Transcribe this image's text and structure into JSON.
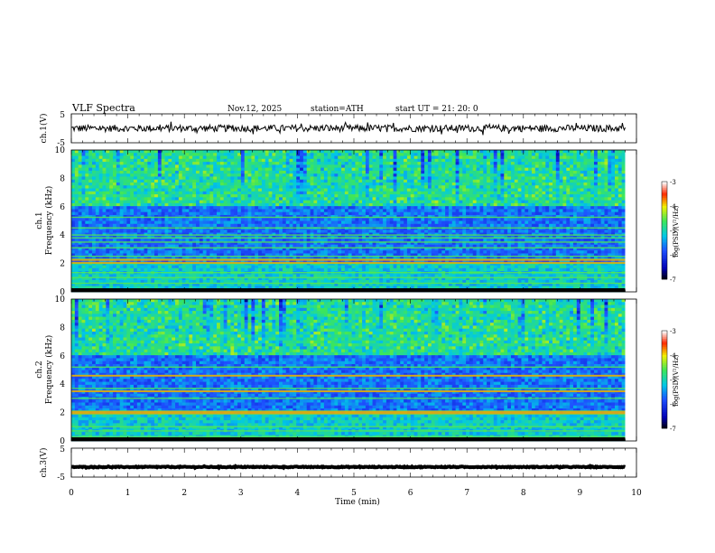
{
  "header": {
    "title": "VLF  Spectra",
    "date": "Nov.12, 2025",
    "station": "station=ATH",
    "start": "start  UT  =   21: 20: 0"
  },
  "chart_data": [
    {
      "type": "line",
      "name": "ch.1 waveform",
      "ylabel": "ch.1(V)",
      "ylim": [
        -5,
        5
      ],
      "yticks": [
        "5",
        "-5"
      ],
      "xlim": [
        0,
        10
      ],
      "trace_end": 9.8,
      "baseline": 0,
      "noise_amplitude": 1.2
    },
    {
      "type": "heatmap",
      "name": "ch.1 spectrogram",
      "ylabel_channel": "ch.1",
      "ylabel": "Frequency  (kHz)",
      "ylim": [
        0,
        10
      ],
      "yticks": [
        "0",
        "2",
        "4",
        "6",
        "8",
        "10"
      ],
      "xlim": [
        0,
        10
      ],
      "data_end": 9.8,
      "colorbar": {
        "min": -7,
        "max": -3,
        "ticks": [
          "-3",
          "-4",
          "-5",
          "-6",
          "-7"
        ],
        "label": "log(PSD)(V²/Hz)"
      },
      "bands_khz": [
        0.2,
        0.6,
        1.0,
        1.35,
        2.0,
        2.3,
        2.5,
        3.1,
        3.5,
        3.8,
        4.0,
        4.5,
        5.25
      ],
      "strong_bands_khz": [
        2.25,
        2.05
      ]
    },
    {
      "type": "heatmap",
      "name": "ch.2 spectrogram",
      "ylabel_channel": "ch.2",
      "ylabel": "Frequency  (kHz)",
      "ylim": [
        0,
        10
      ],
      "yticks": [
        "0",
        "2",
        "4",
        "6",
        "8",
        "10"
      ],
      "xlim": [
        0,
        10
      ],
      "data_end": 9.8,
      "colorbar": {
        "min": -7,
        "max": -3,
        "ticks": [
          "-3",
          "-4",
          "-5",
          "-6",
          "-7"
        ],
        "label": "log(PSD)(V²/Hz)"
      },
      "bands_khz": [
        0.3,
        0.7,
        1.0,
        1.9,
        2.1,
        3.0,
        3.5,
        3.7,
        4.6,
        5.2
      ],
      "strong_bands_khz": [
        2.05,
        4.6,
        3.5,
        1.95
      ]
    },
    {
      "type": "line",
      "name": "ch.3 waveform",
      "ylabel": "ch.3(V)",
      "ylim": [
        -5,
        5
      ],
      "yticks": [
        "5",
        "-5"
      ],
      "xlim": [
        0,
        10
      ],
      "trace_end": 9.8,
      "baseline": -1.5,
      "noise_amplitude": 0.15
    }
  ],
  "x_axis": {
    "label": "Time  (min)",
    "ticks": [
      "0",
      "1",
      "2",
      "3",
      "4",
      "5",
      "6",
      "7",
      "8",
      "9",
      "10"
    ]
  }
}
